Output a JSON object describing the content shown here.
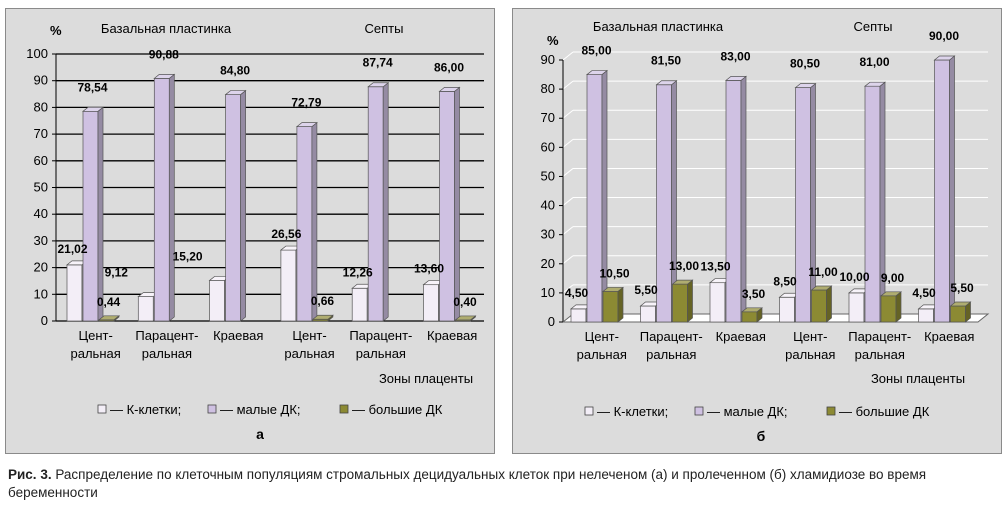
{
  "colors": {
    "k": "#f3eef7",
    "small": "#cfc1e2",
    "big": "#8c8a33",
    "panel": "#dcdcdc",
    "grid_dark": "#000000",
    "grid_light": "#ffffff"
  },
  "caption": {
    "label": "Рис. 3.",
    "text": "Распределение по клеточным популяциям стромальных децидуальных клеток при нелеченом (а) и пролеченном (б) хламидиозе во время беременности"
  },
  "chart_data": [
    {
      "type": "bar",
      "panel_label": "а",
      "ylabel": "%",
      "xlabel": "Зоны плаценты",
      "ylim": [
        0,
        100
      ],
      "yticks": [
        0,
        10,
        20,
        30,
        40,
        50,
        60,
        70,
        80,
        90,
        100
      ],
      "grid": "horizontal, dark",
      "group_headers": [
        {
          "label": "Базальная пластинка",
          "categories": [
            0,
            1,
            2
          ]
        },
        {
          "label": "Септы",
          "categories": [
            3,
            4,
            5
          ]
        }
      ],
      "categories": [
        [
          "Цент-",
          "ральная"
        ],
        [
          "Парацент-",
          "ральная"
        ],
        [
          "Краевая"
        ],
        [
          "Цент-",
          "ральная"
        ],
        [
          "Парацент-",
          "ральная"
        ],
        [
          "Краевая"
        ]
      ],
      "series": [
        {
          "name": "К-клетки;",
          "color": "#f3eef7",
          "values": [
            21.02,
            9.12,
            15.2,
            26.56,
            12.26,
            13.6
          ],
          "labels": [
            "21,02",
            "9,12",
            "15,20",
            "26,56",
            "12,26",
            "13,60"
          ]
        },
        {
          "name": "малые ДК;",
          "color": "#cfc1e2",
          "values": [
            78.54,
            90.88,
            84.8,
            72.79,
            87.74,
            86.0
          ],
          "labels": [
            "78,54",
            "90,88",
            "84,80",
            "72,79",
            "87,74",
            "86,00"
          ]
        },
        {
          "name": "большие ДК",
          "color": "#8c8a33",
          "values": [
            0.44,
            0,
            0,
            0.66,
            0,
            0.4
          ],
          "labels": [
            "0,44",
            "",
            "",
            "0,66",
            "",
            "0,40"
          ]
        }
      ],
      "legend": "bottom"
    },
    {
      "type": "bar",
      "panel_label": "б",
      "ylabel": "%",
      "xlabel": "Зоны плаценты",
      "ylim": [
        0,
        90
      ],
      "yticks": [
        0,
        10,
        20,
        30,
        40,
        50,
        60,
        70,
        80,
        90
      ],
      "grid": "horizontal, light",
      "group_headers": [
        {
          "label": "Базальная пластинка",
          "categories": [
            0,
            1,
            2
          ]
        },
        {
          "label": "Септы",
          "categories": [
            3,
            4,
            5
          ]
        }
      ],
      "categories": [
        [
          "Цент-",
          "ральная"
        ],
        [
          "Парацент-",
          "ральная"
        ],
        [
          "Краевая"
        ],
        [
          "Цент-",
          "ральная"
        ],
        [
          "Парацент-",
          "ральная"
        ],
        [
          "Краевая"
        ]
      ],
      "series": [
        {
          "name": "К-клетки;",
          "color": "#f3eef7",
          "values": [
            4.5,
            5.5,
            13.5,
            8.5,
            10.0,
            4.5
          ],
          "labels": [
            "4,50",
            "5,50",
            "13,50",
            "8,50",
            "10,00",
            "4,50"
          ]
        },
        {
          "name": "малые ДК;",
          "color": "#cfc1e2",
          "values": [
            85.0,
            81.5,
            83.0,
            80.5,
            81.0,
            90.0
          ],
          "labels": [
            "85,00",
            "81,50",
            "83,00",
            "80,50",
            "81,00",
            "90,00"
          ]
        },
        {
          "name": "большие ДК",
          "color": "#8c8a33",
          "values": [
            10.5,
            13.0,
            3.5,
            11.0,
            9.0,
            5.5
          ],
          "labels": [
            "10,50",
            "13,00",
            "3,50",
            "11,00",
            "9,00",
            "5,50"
          ]
        }
      ],
      "legend": "bottom"
    }
  ]
}
